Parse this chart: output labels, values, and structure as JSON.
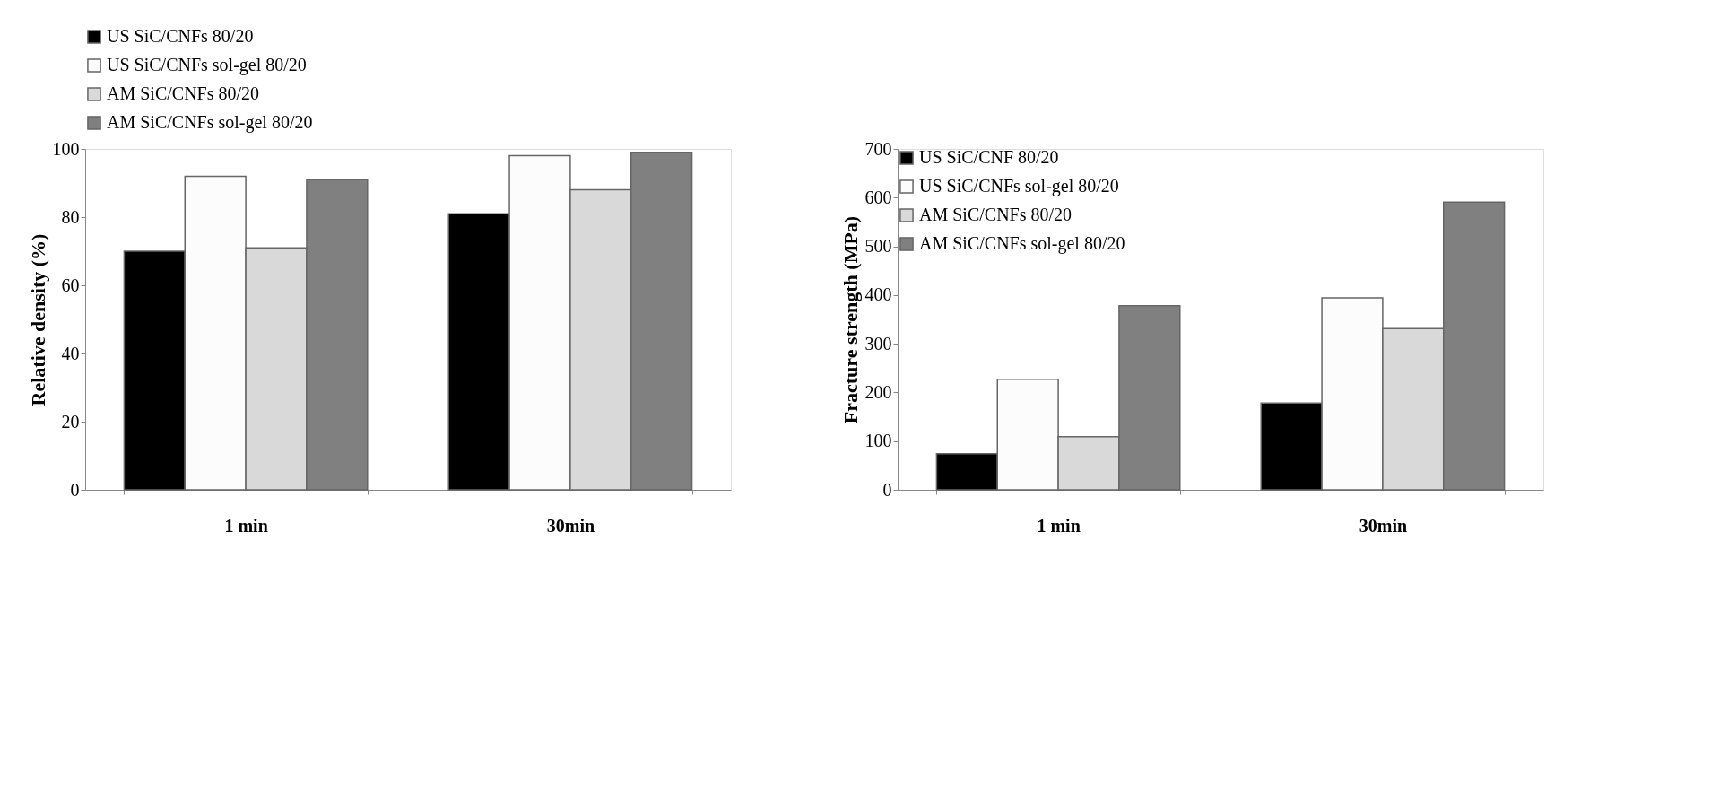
{
  "chart_data": [
    {
      "type": "bar",
      "ylabel": "Relative density  (%)",
      "categories": [
        "1 min",
        "30min"
      ],
      "ylim": [
        0,
        100
      ],
      "yticks": [
        0,
        20,
        40,
        60,
        80,
        100
      ],
      "grid": false,
      "legend": "top",
      "series": [
        {
          "name": "US SiC/CNFs 80/20",
          "color": "#000000",
          "values": [
            70,
            81
          ]
        },
        {
          "name": "US SiC/CNFs sol-gel 80/20",
          "color": "#fcfcfc",
          "values": [
            92,
            98
          ]
        },
        {
          "name": "AM SiC/CNFs 80/20",
          "color": "#d9d9d9",
          "values": [
            71,
            88
          ]
        },
        {
          "name": "AM SiC/CNFs sol-gel 80/20",
          "color": "#808080",
          "values": [
            91,
            99
          ]
        }
      ]
    },
    {
      "type": "bar",
      "ylabel": "Fracture strength  (MPa)",
      "categories": [
        "1 min",
        "30min"
      ],
      "ylim": [
        0,
        700
      ],
      "yticks": [
        0,
        100,
        200,
        300,
        400,
        500,
        600,
        700
      ],
      "grid": false,
      "legend": "top left",
      "series": [
        {
          "name": "US SiC/CNF 80/20",
          "color": "#000000",
          "values": [
            74,
            178
          ]
        },
        {
          "name": "US SiC/CNFs sol-gel 80/20",
          "color": "#fcfcfc",
          "values": [
            227,
            394
          ]
        },
        {
          "name": "AM SiC/CNFs 80/20",
          "color": "#d9d9d9",
          "values": [
            109,
            331
          ]
        },
        {
          "name": "AM SiC/CNFs sol-gel 80/20",
          "color": "#808080",
          "values": [
            378,
            591
          ]
        }
      ]
    }
  ]
}
